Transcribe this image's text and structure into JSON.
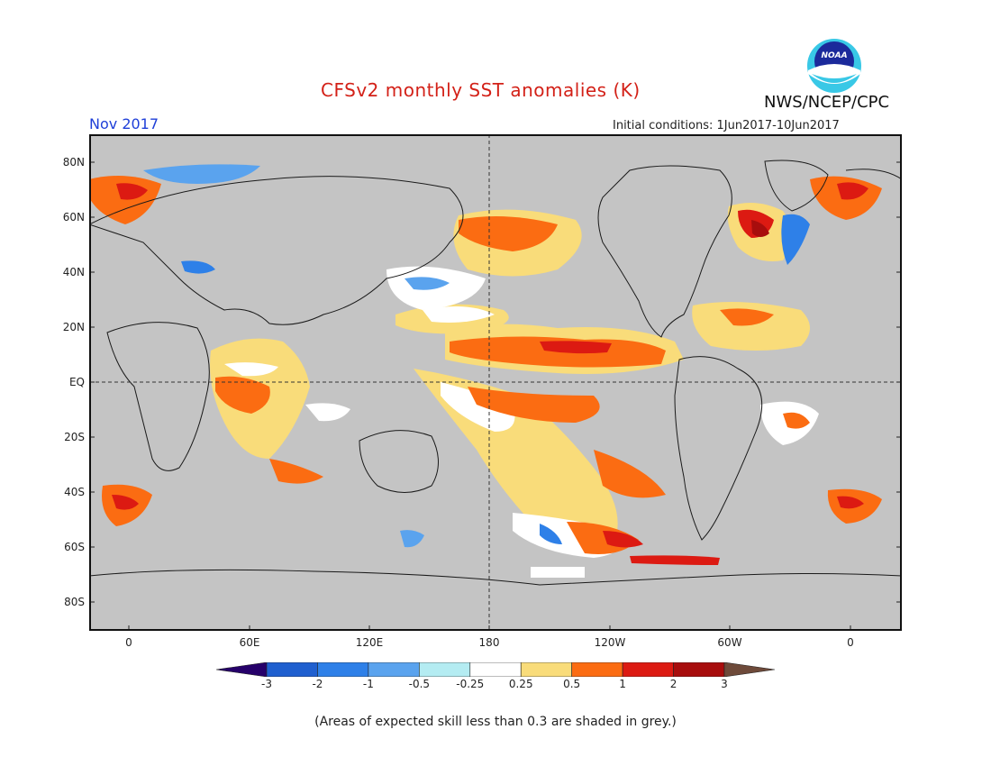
{
  "title": "CFSv2 monthly SST anomalies (K)",
  "valid_month": "Nov 2017",
  "agency": "NWS/NCEP/CPC",
  "logo_text": "NOAA",
  "initial_conditions": "Initial conditions: 1Jun2017-10Jun2017",
  "footnote": "(Areas of expected skill less than 0.3 are shaded in grey.)",
  "lat_labels": [
    "80N",
    "60N",
    "40N",
    "20N",
    "EQ",
    "20S",
    "40S",
    "60S",
    "80S"
  ],
  "lon_labels": [
    "0",
    "60E",
    "120E",
    "180",
    "120W",
    "60W",
    "0"
  ],
  "colorbar": {
    "ticks": [
      "-3",
      "-2",
      "-1",
      "-0.5",
      "-0.25",
      "0.25",
      "0.5",
      "1",
      "2",
      "3"
    ],
    "colors": [
      "#26006a",
      "#1f5fcf",
      "#2e80e8",
      "#5aa3ee",
      "#b4ecf2",
      "#ffffff",
      "#f9dc7a",
      "#fb6c12",
      "#dc1a12",
      "#a80d0d",
      "#6e4a3a"
    ]
  },
  "colors": {
    "land": "#c4c4c4",
    "grey_skill": "#c4c4c4",
    "title": "#d32118",
    "valid_month": "#1f3fd8"
  }
}
